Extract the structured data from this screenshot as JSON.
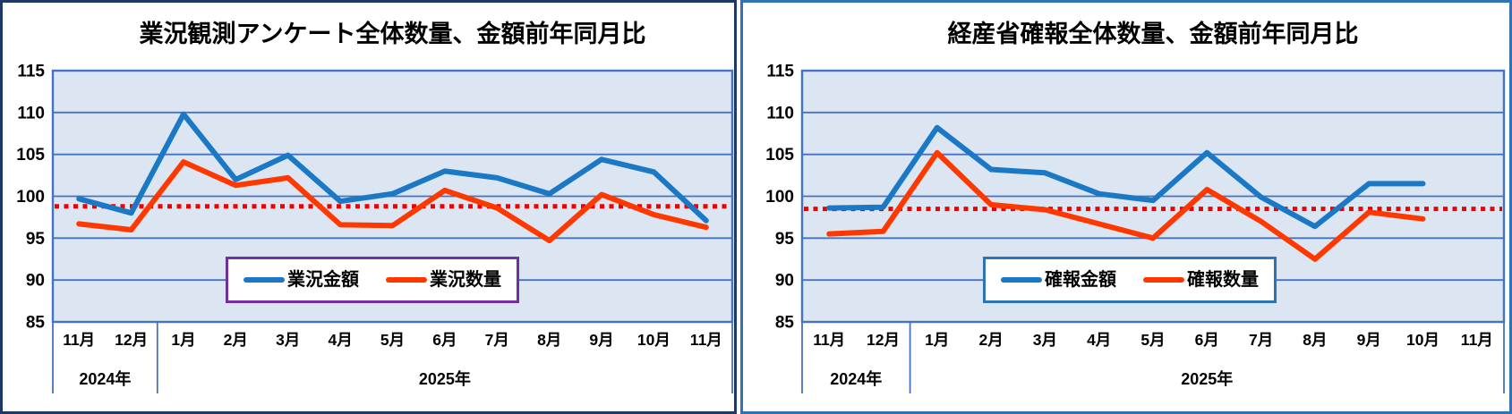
{
  "charts": [
    {
      "title": "業況観測アンケート全体数量、金額前年同月比",
      "panel_border_color": "#1f3864",
      "legend": {
        "border_color": "#7030a0",
        "items": [
          {
            "label": "業況金額",
            "color": "#1b78c4"
          },
          {
            "label": "業況数量",
            "color": "#ff3800"
          }
        ]
      },
      "chart_data": {
        "type": "line",
        "categories": [
          "11月",
          "12月",
          "1月",
          "2月",
          "3月",
          "4月",
          "5月",
          "6月",
          "7月",
          "8月",
          "9月",
          "10月",
          "11月"
        ],
        "year_groups": [
          {
            "label": "2024年",
            "span": 2
          },
          {
            "label": "2025年",
            "span": 11
          }
        ],
        "ylim": [
          85,
          115
        ],
        "yticks": [
          85,
          90,
          95,
          100,
          105,
          110,
          115
        ],
        "grid": true,
        "plot_bg": "#dce6f2",
        "axis_color": "#4472c4",
        "series": [
          {
            "name": "業況金額",
            "color": "#1b78c4",
            "values": [
              99.7,
              98.0,
              109.8,
              102.0,
              104.9,
              99.4,
              100.3,
              103.0,
              102.2,
              100.3,
              104.4,
              102.9,
              97.1
            ]
          },
          {
            "name": "業況数量",
            "color": "#ff3800",
            "values": [
              96.7,
              96.0,
              104.1,
              101.3,
              102.2,
              96.6,
              96.5,
              100.7,
              98.6,
              94.7,
              100.2,
              97.8,
              96.3
            ]
          }
        ],
        "reference_line": {
          "value": 98.8,
          "color": "#f00000",
          "style": "dotted"
        }
      }
    },
    {
      "title": "経産省確報全体数量、金額前年同月比",
      "panel_border_color": "#2e74b5",
      "legend": {
        "border_color": "#2e74b5",
        "items": [
          {
            "label": "確報金額",
            "color": "#1b78c4"
          },
          {
            "label": "確報数量",
            "color": "#ff3800"
          }
        ]
      },
      "chart_data": {
        "type": "line",
        "categories": [
          "11月",
          "12月",
          "1月",
          "2月",
          "3月",
          "4月",
          "5月",
          "6月",
          "7月",
          "8月",
          "9月",
          "10月",
          "11月"
        ],
        "year_groups": [
          {
            "label": "2024年",
            "span": 2
          },
          {
            "label": "2025年",
            "span": 11
          }
        ],
        "ylim": [
          85,
          115
        ],
        "yticks": [
          85,
          90,
          95,
          100,
          105,
          110,
          115
        ],
        "grid": true,
        "plot_bg": "#dce6f2",
        "axis_color": "#4472c4",
        "series": [
          {
            "name": "確報金額",
            "color": "#1b78c4",
            "values": [
              98.6,
              98.7,
              108.2,
              103.2,
              102.8,
              100.3,
              99.5,
              105.2,
              99.9,
              96.4,
              101.5,
              101.5,
              null
            ]
          },
          {
            "name": "確報数量",
            "color": "#ff3800",
            "values": [
              95.5,
              95.8,
              105.2,
              99.0,
              98.4,
              96.7,
              95.0,
              100.8,
              97.0,
              92.5,
              98.1,
              97.3,
              null
            ]
          }
        ],
        "reference_line": {
          "value": 98.5,
          "color": "#f00000",
          "style": "dotted"
        }
      }
    }
  ]
}
